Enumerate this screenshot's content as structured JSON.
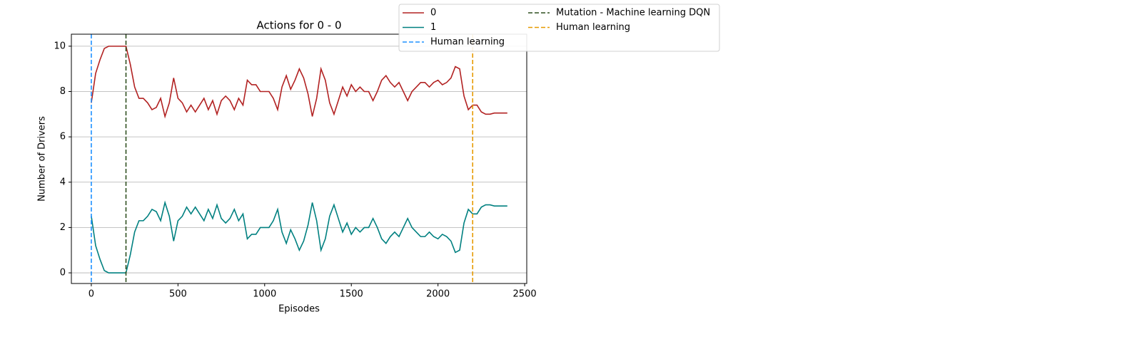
{
  "chart_data": {
    "type": "line",
    "title": "Actions for 0 - 0",
    "xlabel": "Episodes",
    "ylabel": "Number of Drivers",
    "x": [
      0,
      25,
      50,
      75,
      100,
      125,
      150,
      175,
      200,
      225,
      250,
      275,
      300,
      325,
      350,
      375,
      400,
      425,
      450,
      475,
      500,
      525,
      550,
      575,
      600,
      625,
      650,
      675,
      700,
      725,
      750,
      775,
      800,
      825,
      850,
      875,
      900,
      925,
      950,
      975,
      1000,
      1025,
      1050,
      1075,
      1100,
      1125,
      1150,
      1175,
      1200,
      1225,
      1250,
      1275,
      1300,
      1325,
      1350,
      1375,
      1400,
      1425,
      1450,
      1475,
      1500,
      1525,
      1550,
      1575,
      1600,
      1625,
      1650,
      1675,
      1700,
      1725,
      1750,
      1775,
      1800,
      1825,
      1850,
      1875,
      1900,
      1925,
      1950,
      1975,
      2000,
      2025,
      2050,
      2075,
      2100,
      2125,
      2150,
      2175,
      2200,
      2225,
      2250,
      2275,
      2300,
      2325,
      2350,
      2375,
      2400
    ],
    "series": [
      {
        "name": "0",
        "color": "#b22222",
        "values": [
          7.5,
          8.8,
          9.4,
          9.9,
          10,
          10,
          10,
          10,
          10,
          9.2,
          8.2,
          7.7,
          7.7,
          7.5,
          7.2,
          7.3,
          7.7,
          6.9,
          7.5,
          8.6,
          7.7,
          7.5,
          7.1,
          7.4,
          7.1,
          7.4,
          7.7,
          7.2,
          7.6,
          7.0,
          7.6,
          7.8,
          7.6,
          7.2,
          7.7,
          7.4,
          8.5,
          8.3,
          8.3,
          8.0,
          8.0,
          8.0,
          7.7,
          7.2,
          8.2,
          8.7,
          8.1,
          8.5,
          9.0,
          8.6,
          7.9,
          6.9,
          7.7,
          9.0,
          8.5,
          7.5,
          7.0,
          7.6,
          8.2,
          7.8,
          8.3,
          8.0,
          8.2,
          8.0,
          8.0,
          7.6,
          8.0,
          8.5,
          8.7,
          8.4,
          8.2,
          8.4,
          8.0,
          7.6,
          8.0,
          8.2,
          8.4,
          8.4,
          8.2,
          8.4,
          8.5,
          8.3,
          8.4,
          8.6,
          9.1,
          9.0,
          7.8,
          7.2,
          7.4,
          7.4,
          7.1,
          7.0,
          7.0,
          7.05,
          7.05,
          7.05,
          7.05
        ]
      },
      {
        "name": "1",
        "color": "#008080",
        "values": [
          2.5,
          1.2,
          0.6,
          0.1,
          0,
          0,
          0,
          0,
          0,
          0.8,
          1.8,
          2.3,
          2.3,
          2.5,
          2.8,
          2.7,
          2.3,
          3.1,
          2.5,
          1.4,
          2.3,
          2.5,
          2.9,
          2.6,
          2.9,
          2.6,
          2.3,
          2.8,
          2.4,
          3.0,
          2.4,
          2.2,
          2.4,
          2.8,
          2.3,
          2.6,
          1.5,
          1.7,
          1.7,
          2.0,
          2.0,
          2.0,
          2.3,
          2.8,
          1.8,
          1.3,
          1.9,
          1.5,
          1.0,
          1.4,
          2.1,
          3.1,
          2.3,
          1.0,
          1.5,
          2.5,
          3.0,
          2.4,
          1.8,
          2.2,
          1.7,
          2.0,
          1.8,
          2.0,
          2.0,
          2.4,
          2.0,
          1.5,
          1.3,
          1.6,
          1.8,
          1.6,
          2.0,
          2.4,
          2.0,
          1.8,
          1.6,
          1.6,
          1.8,
          1.6,
          1.5,
          1.7,
          1.6,
          1.4,
          0.9,
          1.0,
          2.2,
          2.8,
          2.6,
          2.6,
          2.9,
          3.0,
          3.0,
          2.95,
          2.95,
          2.95,
          2.95
        ]
      }
    ],
    "vlines": [
      {
        "name": "Human learning",
        "x": 0,
        "color": "#1e90ff"
      },
      {
        "name": "Mutation - Machine learning DQN",
        "x": 200,
        "color": "#2f4f1f"
      },
      {
        "name": "Human learning",
        "x": 2200,
        "color": "#e69a00"
      }
    ],
    "xlim": [
      -115,
      2512
    ],
    "ylim": [
      -0.47,
      10.53
    ],
    "xticks": [
      0,
      500,
      1000,
      1500,
      2000,
      2500
    ],
    "yticks": [
      0,
      2,
      4,
      6,
      8,
      10
    ],
    "grid": "y"
  }
}
